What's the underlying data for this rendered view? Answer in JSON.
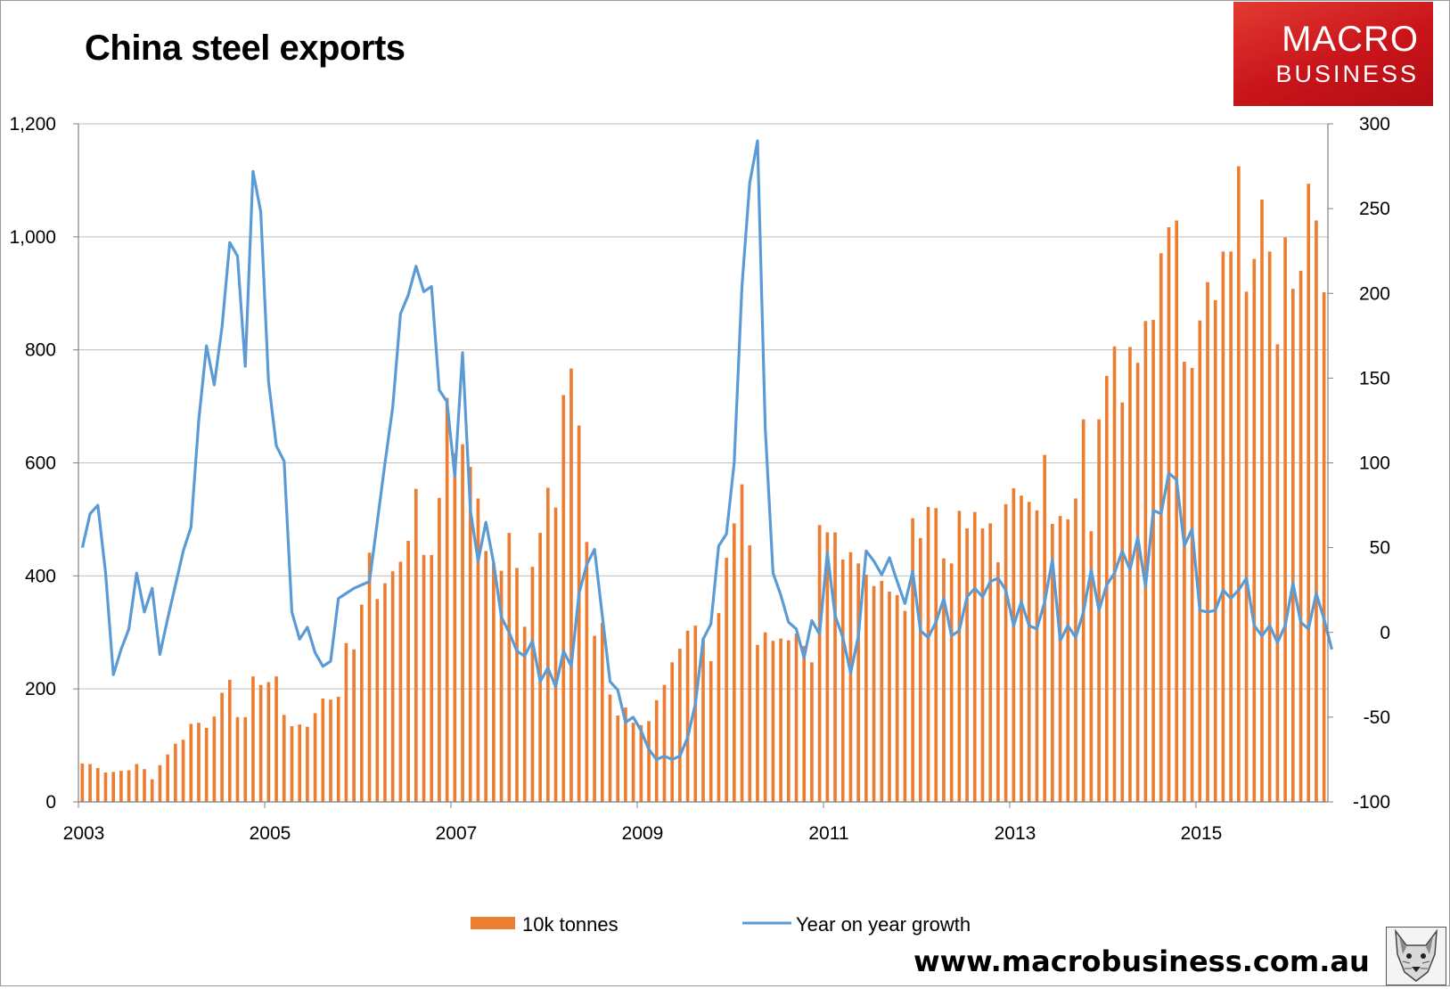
{
  "title": "China steel exports",
  "logo": {
    "line1": "MACRO",
    "line2": "BUSINESS"
  },
  "website": "www.macrobusiness.com.au",
  "icon": "wolf-head-icon",
  "colors": {
    "bars": "#ED7D31",
    "line": "#5B9BD5",
    "grid": "#BFBFBF",
    "axis": "#808080"
  },
  "legend": [
    {
      "label": "10k tonnes"
    },
    {
      "label": "Year on year growth"
    }
  ],
  "chart_data": {
    "type": "bar",
    "title": "China steel exports",
    "x_tick_labels": [
      "2003",
      "2005",
      "2007",
      "2009",
      "2011",
      "2013",
      "2015"
    ],
    "x_tick_months": [
      0,
      24,
      48,
      72,
      96,
      120,
      144
    ],
    "y_left": {
      "label": "10k tonnes",
      "min": 0,
      "max": 1200,
      "ticks": [
        0,
        200,
        400,
        600,
        800,
        1000,
        1200
      ],
      "tick_labels": [
        "0",
        "200",
        "400",
        "600",
        "800",
        "1,000",
        "1,200"
      ]
    },
    "y_right": {
      "label": "Year on year growth",
      "min": -100,
      "max": 300,
      "ticks": [
        -100,
        -50,
        0,
        50,
        100,
        150,
        200,
        250,
        300
      ],
      "tick_labels": [
        "-100",
        "-50",
        "0",
        "50",
        "100",
        "150",
        "200",
        "250",
        "300"
      ]
    },
    "grid": true,
    "legend_position": "bottom",
    "start": "2003-01",
    "series": [
      {
        "name": "10k tonnes",
        "type": "bar",
        "axis": "left",
        "values": [
          68,
          67,
          60,
          52,
          53,
          55,
          56,
          67,
          58,
          40,
          65,
          84,
          103,
          110,
          138,
          140,
          131,
          151,
          193,
          216,
          150,
          150,
          222,
          207,
          212,
          222,
          154,
          134,
          137,
          133,
          157,
          183,
          181,
          186,
          281,
          270,
          349,
          441,
          359,
          387,
          408,
          425,
          462,
          554,
          437,
          437,
          538,
          715,
          617,
          633,
          593,
          537,
          444,
          423,
          409,
          476,
          414,
          310,
          416,
          476,
          556,
          521,
          720,
          767,
          666,
          460,
          294,
          317,
          190,
          153,
          167,
          140,
          136,
          143,
          180,
          207,
          247,
          271,
          303,
          312,
          289,
          249,
          334,
          432,
          493,
          562,
          454,
          278,
          300,
          285,
          289,
          286,
          298,
          276,
          247,
          490,
          477,
          477,
          429,
          442,
          422,
          402,
          382,
          391,
          372,
          366,
          338,
          502,
          467,
          522,
          520,
          431,
          422,
          515,
          484,
          513,
          484,
          493,
          424,
          527,
          555,
          542,
          531,
          516,
          614,
          492,
          506,
          500,
          537,
          677,
          479,
          677,
          754,
          806,
          707,
          805,
          777,
          851,
          853,
          971,
          1017,
          1029,
          779,
          768,
          852,
          920,
          888,
          974,
          974,
          1125,
          903,
          961,
          1066,
          974,
          810,
          999,
          908,
          940,
          1094,
          1029,
          902
        ]
      },
      {
        "name": "Year on year growth",
        "type": "line",
        "axis": "right",
        "values": [
          50,
          70,
          75,
          35,
          -25,
          -10,
          2,
          35,
          12,
          26,
          -13,
          8,
          28,
          48,
          62,
          125,
          169,
          146,
          180,
          230,
          222,
          157,
          272,
          248,
          148,
          110,
          101,
          12,
          -4,
          3,
          -12,
          -20,
          -17,
          20,
          23,
          26,
          28,
          30,
          65,
          100,
          133,
          188,
          199,
          216,
          201,
          204,
          143,
          136,
          92,
          165,
          72,
          42,
          65,
          41,
          9,
          0,
          -11,
          -14,
          -5,
          -29,
          -21,
          -32,
          -11,
          -20,
          23,
          40,
          49,
          10,
          -29,
          -34,
          -53,
          -50,
          -58,
          -69,
          -75,
          -73,
          -75,
          -73,
          -62,
          -42,
          -4,
          5,
          51,
          58,
          100,
          204,
          265,
          290,
          120,
          35,
          22,
          6,
          2,
          -15,
          7,
          -1,
          47,
          10,
          -3,
          -24,
          -2,
          48,
          42,
          34,
          44,
          30,
          17,
          36,
          1,
          -3,
          6,
          20,
          -2,
          1,
          21,
          26,
          21,
          30,
          32,
          25,
          4,
          18,
          4,
          2,
          18,
          43,
          -5,
          4,
          -3,
          12,
          37,
          13,
          28,
          35,
          48,
          37,
          56,
          27,
          72,
          70,
          94,
          90,
          51,
          61,
          13,
          12,
          13,
          25,
          20,
          25,
          32,
          4,
          -2,
          4,
          -6,
          4,
          29,
          6,
          2,
          23,
          8,
          -10
        ]
      }
    ]
  }
}
